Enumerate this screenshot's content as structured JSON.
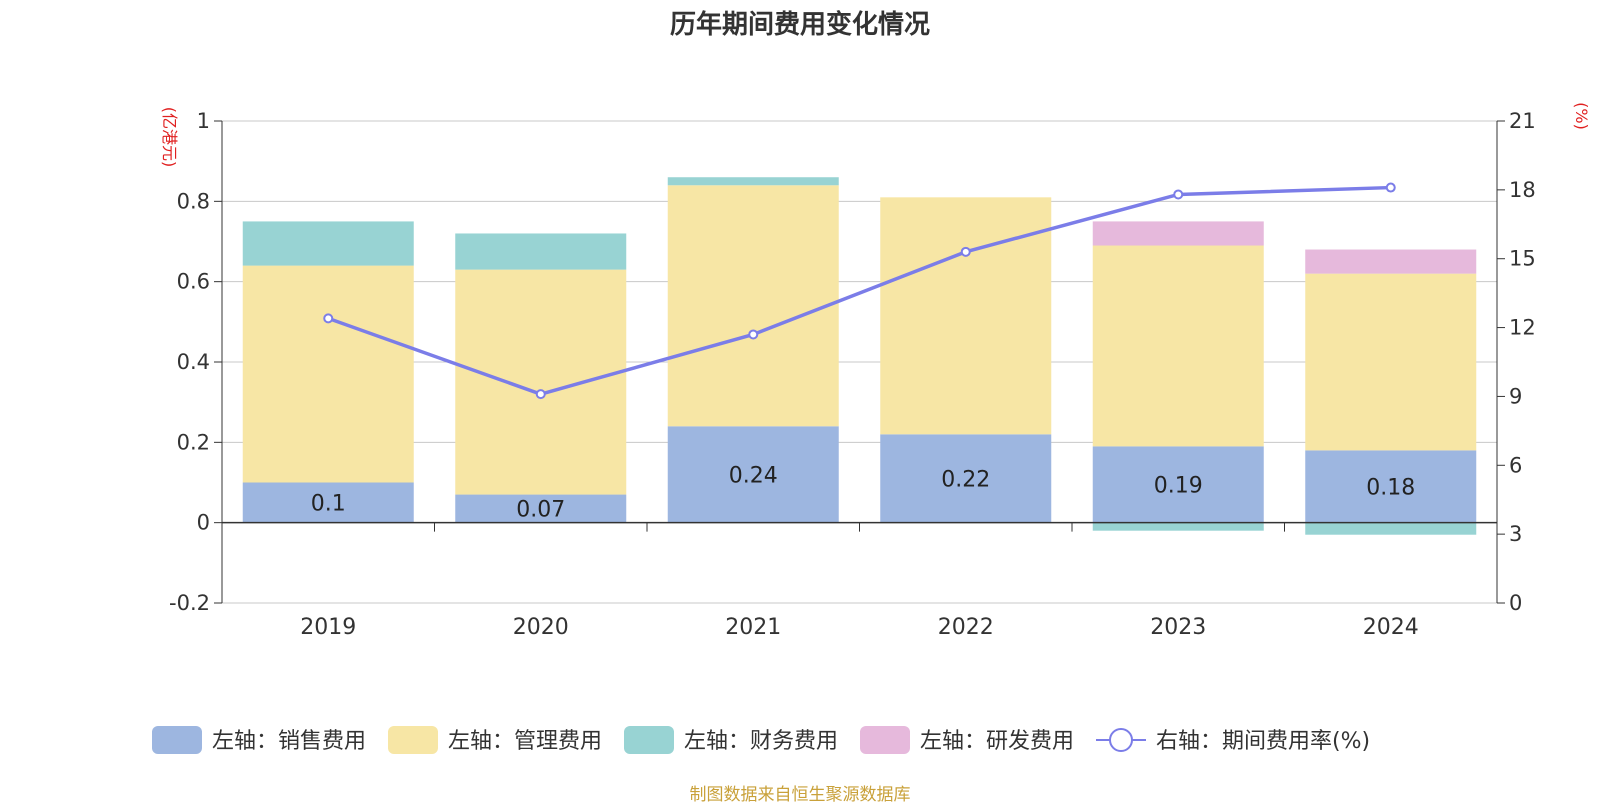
{
  "chart_data": {
    "type": "bar",
    "title": "历年期间费用变化情况",
    "left_axis_unit": "(亿港元)",
    "right_axis_unit": "(%)",
    "categories": [
      "2019",
      "2020",
      "2021",
      "2022",
      "2023",
      "2024"
    ],
    "left_axis": {
      "ticks": [
        "1",
        "0.8",
        "0.6",
        "0.4",
        "0.2",
        "0",
        "-0.2"
      ],
      "range": [
        -0.2,
        1
      ]
    },
    "right_axis": {
      "ticks": [
        "21",
        "18",
        "15",
        "12",
        "9",
        "6",
        "3",
        "0"
      ],
      "range": [
        0,
        21
      ]
    },
    "stacked": true,
    "series": [
      {
        "name": "左轴：销售费用",
        "axis": "left",
        "type": "bar",
        "color": "#9db6e0",
        "values": [
          0.1,
          0.07,
          0.24,
          0.22,
          0.19,
          0.18
        ],
        "labels": [
          "0.1",
          "0.07",
          "0.24",
          "0.22",
          "0.19",
          "0.18"
        ]
      },
      {
        "name": "左轴：管理费用",
        "axis": "left",
        "type": "bar",
        "color": "#f7e6a5",
        "values": [
          0.54,
          0.56,
          0.6,
          0.59,
          0.5,
          0.44
        ]
      },
      {
        "name": "左轴：财务费用",
        "axis": "left",
        "type": "bar",
        "color": "#98d3d3",
        "values": [
          0.11,
          0.09,
          0.02,
          0,
          -0.02,
          -0.03
        ]
      },
      {
        "name": "左轴：研发费用",
        "axis": "left",
        "type": "bar",
        "color": "#e6b9dc",
        "values": [
          0,
          0,
          0,
          0,
          0.06,
          0.06
        ]
      },
      {
        "name": "右轴：期间费用率(%)",
        "axis": "right",
        "type": "line",
        "color": "#7b7de8",
        "values": [
          12.4,
          9.1,
          11.7,
          15.3,
          17.8,
          18.1
        ]
      }
    ],
    "grid": true,
    "legend_position": "bottom"
  },
  "footer": "制图数据来自恒生聚源数据库"
}
